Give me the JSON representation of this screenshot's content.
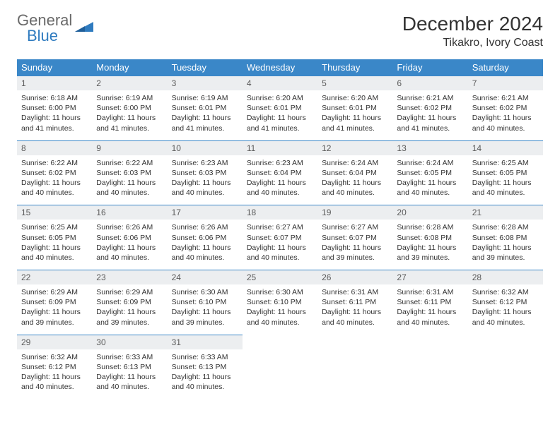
{
  "logo": {
    "line1": "General",
    "line2": "Blue",
    "color_general": "#6a6a6a",
    "color_blue": "#2f7bbf",
    "triangle_color": "#2f7bbf"
  },
  "header": {
    "month_title": "December 2024",
    "location": "Tikakro, Ivory Coast"
  },
  "colors": {
    "header_bg": "#3a87c8",
    "header_text": "#ffffff",
    "daynum_bg": "#eceef0",
    "daynum_text": "#5a5a5a",
    "body_text": "#333333",
    "row_divider": "#3a87c8"
  },
  "day_labels": [
    "Sunday",
    "Monday",
    "Tuesday",
    "Wednesday",
    "Thursday",
    "Friday",
    "Saturday"
  ],
  "weeks": [
    [
      {
        "n": "1",
        "sr": "Sunrise: 6:18 AM",
        "ss": "Sunset: 6:00 PM",
        "dl": "Daylight: 11 hours and 41 minutes."
      },
      {
        "n": "2",
        "sr": "Sunrise: 6:19 AM",
        "ss": "Sunset: 6:00 PM",
        "dl": "Daylight: 11 hours and 41 minutes."
      },
      {
        "n": "3",
        "sr": "Sunrise: 6:19 AM",
        "ss": "Sunset: 6:01 PM",
        "dl": "Daylight: 11 hours and 41 minutes."
      },
      {
        "n": "4",
        "sr": "Sunrise: 6:20 AM",
        "ss": "Sunset: 6:01 PM",
        "dl": "Daylight: 11 hours and 41 minutes."
      },
      {
        "n": "5",
        "sr": "Sunrise: 6:20 AM",
        "ss": "Sunset: 6:01 PM",
        "dl": "Daylight: 11 hours and 41 minutes."
      },
      {
        "n": "6",
        "sr": "Sunrise: 6:21 AM",
        "ss": "Sunset: 6:02 PM",
        "dl": "Daylight: 11 hours and 41 minutes."
      },
      {
        "n": "7",
        "sr": "Sunrise: 6:21 AM",
        "ss": "Sunset: 6:02 PM",
        "dl": "Daylight: 11 hours and 40 minutes."
      }
    ],
    [
      {
        "n": "8",
        "sr": "Sunrise: 6:22 AM",
        "ss": "Sunset: 6:02 PM",
        "dl": "Daylight: 11 hours and 40 minutes."
      },
      {
        "n": "9",
        "sr": "Sunrise: 6:22 AM",
        "ss": "Sunset: 6:03 PM",
        "dl": "Daylight: 11 hours and 40 minutes."
      },
      {
        "n": "10",
        "sr": "Sunrise: 6:23 AM",
        "ss": "Sunset: 6:03 PM",
        "dl": "Daylight: 11 hours and 40 minutes."
      },
      {
        "n": "11",
        "sr": "Sunrise: 6:23 AM",
        "ss": "Sunset: 6:04 PM",
        "dl": "Daylight: 11 hours and 40 minutes."
      },
      {
        "n": "12",
        "sr": "Sunrise: 6:24 AM",
        "ss": "Sunset: 6:04 PM",
        "dl": "Daylight: 11 hours and 40 minutes."
      },
      {
        "n": "13",
        "sr": "Sunrise: 6:24 AM",
        "ss": "Sunset: 6:05 PM",
        "dl": "Daylight: 11 hours and 40 minutes."
      },
      {
        "n": "14",
        "sr": "Sunrise: 6:25 AM",
        "ss": "Sunset: 6:05 PM",
        "dl": "Daylight: 11 hours and 40 minutes."
      }
    ],
    [
      {
        "n": "15",
        "sr": "Sunrise: 6:25 AM",
        "ss": "Sunset: 6:05 PM",
        "dl": "Daylight: 11 hours and 40 minutes."
      },
      {
        "n": "16",
        "sr": "Sunrise: 6:26 AM",
        "ss": "Sunset: 6:06 PM",
        "dl": "Daylight: 11 hours and 40 minutes."
      },
      {
        "n": "17",
        "sr": "Sunrise: 6:26 AM",
        "ss": "Sunset: 6:06 PM",
        "dl": "Daylight: 11 hours and 40 minutes."
      },
      {
        "n": "18",
        "sr": "Sunrise: 6:27 AM",
        "ss": "Sunset: 6:07 PM",
        "dl": "Daylight: 11 hours and 40 minutes."
      },
      {
        "n": "19",
        "sr": "Sunrise: 6:27 AM",
        "ss": "Sunset: 6:07 PM",
        "dl": "Daylight: 11 hours and 39 minutes."
      },
      {
        "n": "20",
        "sr": "Sunrise: 6:28 AM",
        "ss": "Sunset: 6:08 PM",
        "dl": "Daylight: 11 hours and 39 minutes."
      },
      {
        "n": "21",
        "sr": "Sunrise: 6:28 AM",
        "ss": "Sunset: 6:08 PM",
        "dl": "Daylight: 11 hours and 39 minutes."
      }
    ],
    [
      {
        "n": "22",
        "sr": "Sunrise: 6:29 AM",
        "ss": "Sunset: 6:09 PM",
        "dl": "Daylight: 11 hours and 39 minutes."
      },
      {
        "n": "23",
        "sr": "Sunrise: 6:29 AM",
        "ss": "Sunset: 6:09 PM",
        "dl": "Daylight: 11 hours and 39 minutes."
      },
      {
        "n": "24",
        "sr": "Sunrise: 6:30 AM",
        "ss": "Sunset: 6:10 PM",
        "dl": "Daylight: 11 hours and 39 minutes."
      },
      {
        "n": "25",
        "sr": "Sunrise: 6:30 AM",
        "ss": "Sunset: 6:10 PM",
        "dl": "Daylight: 11 hours and 40 minutes."
      },
      {
        "n": "26",
        "sr": "Sunrise: 6:31 AM",
        "ss": "Sunset: 6:11 PM",
        "dl": "Daylight: 11 hours and 40 minutes."
      },
      {
        "n": "27",
        "sr": "Sunrise: 6:31 AM",
        "ss": "Sunset: 6:11 PM",
        "dl": "Daylight: 11 hours and 40 minutes."
      },
      {
        "n": "28",
        "sr": "Sunrise: 6:32 AM",
        "ss": "Sunset: 6:12 PM",
        "dl": "Daylight: 11 hours and 40 minutes."
      }
    ],
    [
      {
        "n": "29",
        "sr": "Sunrise: 6:32 AM",
        "ss": "Sunset: 6:12 PM",
        "dl": "Daylight: 11 hours and 40 minutes."
      },
      {
        "n": "30",
        "sr": "Sunrise: 6:33 AM",
        "ss": "Sunset: 6:13 PM",
        "dl": "Daylight: 11 hours and 40 minutes."
      },
      {
        "n": "31",
        "sr": "Sunrise: 6:33 AM",
        "ss": "Sunset: 6:13 PM",
        "dl": "Daylight: 11 hours and 40 minutes."
      },
      null,
      null,
      null,
      null
    ]
  ]
}
